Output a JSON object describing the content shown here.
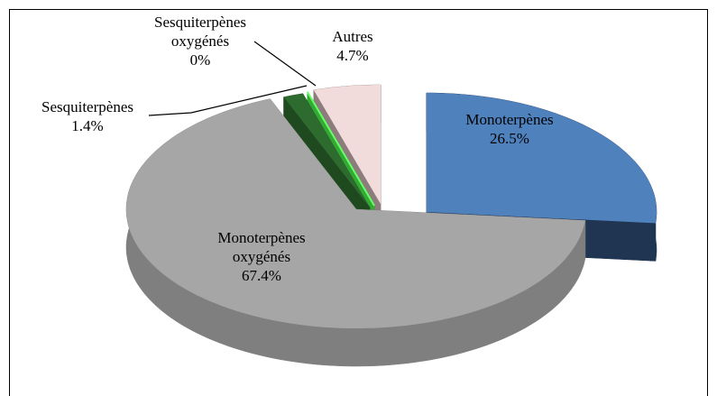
{
  "chart_data": {
    "type": "pie3d",
    "categories": [
      "Monoterpènes",
      "Monoterpènes oxygénés",
      "Sesquiterpènes",
      "Sesquiterpènes oxygénés",
      "Autres"
    ],
    "values": [
      26.5,
      67.4,
      1.4,
      0,
      4.7
    ],
    "value_labels": [
      "26.5%",
      "67.4%",
      "1.4%",
      "0%",
      "4.7%"
    ],
    "colors": [
      "#4f81bd",
      "#a6a6a6",
      "#2e6b2e",
      "#66ff66",
      "#f2dcdb"
    ],
    "side_colors": [
      "#1f3552",
      "#7f7f7f",
      "#1f4a1f",
      "#33aa33",
      "#8c7c7c"
    ]
  }
}
